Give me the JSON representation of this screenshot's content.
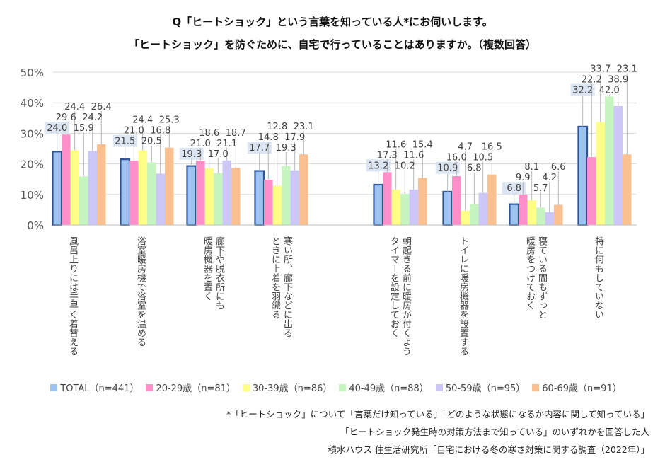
{
  "chart_data": {
    "type": "bar",
    "title": "Q「ヒートショック」という言葉を知っている人*にお伺いします。",
    "subtitle": "「ヒートショック」を防ぐために、自宅で行っていることはありますか。（複数回答）",
    "categories": [
      "風呂上りには手早く着替える",
      "浴室暖房機で浴室を温める",
      "廊下や脱衣所にも\n暖房機器を置く",
      "寒い所、廊下などに出る\nときに上着を羽織る",
      "朝起きる前に暖房が付くよう\nタイマーを設定しておく",
      "トイレに暖房機器を設置する",
      "寝ている間もずっと\n暖房をつけておく",
      "特に何もしていない"
    ],
    "series": [
      {
        "name": "TOTAL（n=441）",
        "color": "#9dc3f0",
        "values": [
          24.0,
          21.5,
          19.3,
          17.7,
          13.2,
          10.9,
          6.8,
          32.2
        ]
      },
      {
        "name": "20-29歳（n=81）",
        "color": "#ff8fc8",
        "values": [
          29.6,
          21.0,
          21.0,
          14.8,
          17.3,
          16.0,
          9.9,
          22.2
        ]
      },
      {
        "name": "30-39歳（n=86）",
        "color": "#ffff88",
        "values": [
          24.4,
          24.4,
          18.6,
          12.8,
          11.6,
          4.7,
          8.1,
          33.7
        ]
      },
      {
        "name": "40-49歳（n=88）",
        "color": "#c6f5c0",
        "values": [
          15.9,
          20.5,
          17.0,
          19.3,
          10.2,
          6.8,
          5.7,
          42.0
        ]
      },
      {
        "name": "50-59歳（n=95）",
        "color": "#cbc7f7",
        "values": [
          24.2,
          16.8,
          21.1,
          17.9,
          11.6,
          10.5,
          4.2,
          38.9
        ]
      },
      {
        "name": "60-69歳（n=91）",
        "color": "#fac090",
        "values": [
          26.4,
          25.3,
          18.7,
          23.1,
          15.4,
          16.5,
          6.6,
          23.1
        ]
      }
    ],
    "ylim": [
      0,
      50
    ],
    "yticks": [
      "0%",
      "10%",
      "20%",
      "30%",
      "40%",
      "50%"
    ],
    "grid": true,
    "legend": "bottom"
  },
  "notes": [
    "*「ヒートショック」について「言葉だけ知っている」「どのような状態になるか内容に関して知っている」",
    "「ヒートショック発生時の対策方法まで知っている」のいずれかを回答した人",
    "積水ハウス 住生活研究所「自宅における冬の寒さ対策に関する調査（2022年）」"
  ]
}
